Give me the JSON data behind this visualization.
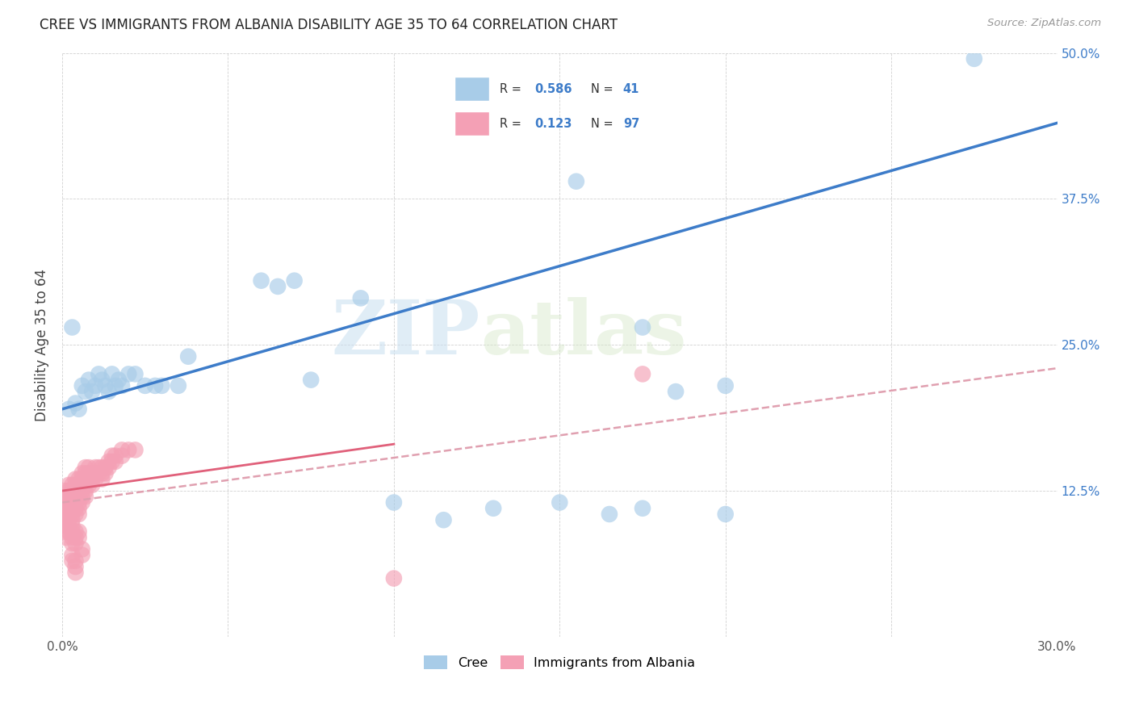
{
  "title": "CREE VS IMMIGRANTS FROM ALBANIA DISABILITY AGE 35 TO 64 CORRELATION CHART",
  "source": "Source: ZipAtlas.com",
  "xlabel": "",
  "ylabel": "Disability Age 35 to 64",
  "xlim": [
    0,
    0.3
  ],
  "ylim": [
    0,
    0.5
  ],
  "xticks": [
    0.0,
    0.05,
    0.1,
    0.15,
    0.2,
    0.25,
    0.3
  ],
  "yticks": [
    0.0,
    0.125,
    0.25,
    0.375,
    0.5
  ],
  "cree_color": "#a8cce8",
  "albania_color": "#f4a0b5",
  "cree_line_color": "#3d7cc9",
  "albania_line_color": "#e0607a",
  "albania_dash_color": "#e0a0b0",
  "watermark_zip": "ZIP",
  "watermark_atlas": "atlas",
  "background_color": "#ffffff",
  "cree_scatter": [
    [
      0.002,
      0.195
    ],
    [
      0.004,
      0.2
    ],
    [
      0.005,
      0.195
    ],
    [
      0.006,
      0.215
    ],
    [
      0.007,
      0.21
    ],
    [
      0.008,
      0.22
    ],
    [
      0.009,
      0.21
    ],
    [
      0.01,
      0.215
    ],
    [
      0.011,
      0.225
    ],
    [
      0.012,
      0.22
    ],
    [
      0.013,
      0.215
    ],
    [
      0.014,
      0.21
    ],
    [
      0.015,
      0.225
    ],
    [
      0.016,
      0.215
    ],
    [
      0.017,
      0.22
    ],
    [
      0.018,
      0.215
    ],
    [
      0.02,
      0.225
    ],
    [
      0.022,
      0.225
    ],
    [
      0.025,
      0.215
    ],
    [
      0.028,
      0.215
    ],
    [
      0.03,
      0.215
    ],
    [
      0.035,
      0.215
    ],
    [
      0.038,
      0.24
    ],
    [
      0.003,
      0.265
    ],
    [
      0.06,
      0.305
    ],
    [
      0.065,
      0.3
    ],
    [
      0.07,
      0.305
    ],
    [
      0.075,
      0.22
    ],
    [
      0.09,
      0.29
    ],
    [
      0.13,
      0.11
    ],
    [
      0.15,
      0.115
    ],
    [
      0.165,
      0.105
    ],
    [
      0.2,
      0.105
    ],
    [
      0.175,
      0.11
    ],
    [
      0.155,
      0.39
    ],
    [
      0.275,
      0.495
    ],
    [
      0.185,
      0.21
    ],
    [
      0.1,
      0.115
    ],
    [
      0.115,
      0.1
    ],
    [
      0.175,
      0.265
    ],
    [
      0.2,
      0.215
    ]
  ],
  "albania_scatter": [
    [
      0.001,
      0.125
    ],
    [
      0.001,
      0.12
    ],
    [
      0.001,
      0.115
    ],
    [
      0.001,
      0.1
    ],
    [
      0.002,
      0.13
    ],
    [
      0.002,
      0.125
    ],
    [
      0.002,
      0.12
    ],
    [
      0.002,
      0.115
    ],
    [
      0.002,
      0.11
    ],
    [
      0.002,
      0.105
    ],
    [
      0.002,
      0.1
    ],
    [
      0.003,
      0.13
    ],
    [
      0.003,
      0.125
    ],
    [
      0.003,
      0.12
    ],
    [
      0.003,
      0.115
    ],
    [
      0.003,
      0.11
    ],
    [
      0.003,
      0.105
    ],
    [
      0.003,
      0.1
    ],
    [
      0.004,
      0.135
    ],
    [
      0.004,
      0.13
    ],
    [
      0.004,
      0.125
    ],
    [
      0.004,
      0.12
    ],
    [
      0.004,
      0.115
    ],
    [
      0.004,
      0.11
    ],
    [
      0.004,
      0.105
    ],
    [
      0.005,
      0.135
    ],
    [
      0.005,
      0.13
    ],
    [
      0.005,
      0.125
    ],
    [
      0.005,
      0.12
    ],
    [
      0.005,
      0.115
    ],
    [
      0.005,
      0.11
    ],
    [
      0.005,
      0.105
    ],
    [
      0.006,
      0.14
    ],
    [
      0.006,
      0.135
    ],
    [
      0.006,
      0.13
    ],
    [
      0.006,
      0.125
    ],
    [
      0.006,
      0.12
    ],
    [
      0.006,
      0.115
    ],
    [
      0.007,
      0.145
    ],
    [
      0.007,
      0.14
    ],
    [
      0.007,
      0.135
    ],
    [
      0.007,
      0.13
    ],
    [
      0.007,
      0.125
    ],
    [
      0.007,
      0.12
    ],
    [
      0.008,
      0.145
    ],
    [
      0.008,
      0.14
    ],
    [
      0.008,
      0.135
    ],
    [
      0.008,
      0.13
    ],
    [
      0.009,
      0.14
    ],
    [
      0.009,
      0.135
    ],
    [
      0.009,
      0.13
    ],
    [
      0.01,
      0.145
    ],
    [
      0.01,
      0.14
    ],
    [
      0.01,
      0.135
    ],
    [
      0.011,
      0.145
    ],
    [
      0.011,
      0.14
    ],
    [
      0.012,
      0.145
    ],
    [
      0.012,
      0.14
    ],
    [
      0.012,
      0.135
    ],
    [
      0.013,
      0.145
    ],
    [
      0.013,
      0.14
    ],
    [
      0.014,
      0.15
    ],
    [
      0.014,
      0.145
    ],
    [
      0.015,
      0.155
    ],
    [
      0.015,
      0.15
    ],
    [
      0.016,
      0.155
    ],
    [
      0.016,
      0.15
    ],
    [
      0.018,
      0.16
    ],
    [
      0.018,
      0.155
    ],
    [
      0.02,
      0.16
    ],
    [
      0.022,
      0.16
    ],
    [
      0.0005,
      0.115
    ],
    [
      0.0005,
      0.11
    ],
    [
      0.0005,
      0.105
    ],
    [
      0.001,
      0.095
    ],
    [
      0.001,
      0.09
    ],
    [
      0.001,
      0.085
    ],
    [
      0.002,
      0.095
    ],
    [
      0.002,
      0.09
    ],
    [
      0.003,
      0.095
    ],
    [
      0.003,
      0.09
    ],
    [
      0.003,
      0.085
    ],
    [
      0.003,
      0.08
    ],
    [
      0.004,
      0.09
    ],
    [
      0.004,
      0.085
    ],
    [
      0.004,
      0.08
    ],
    [
      0.005,
      0.09
    ],
    [
      0.005,
      0.085
    ],
    [
      0.006,
      0.075
    ],
    [
      0.006,
      0.07
    ],
    [
      0.003,
      0.07
    ],
    [
      0.003,
      0.065
    ],
    [
      0.004,
      0.065
    ],
    [
      0.004,
      0.06
    ],
    [
      0.004,
      0.055
    ],
    [
      0.1,
      0.05
    ],
    [
      0.175,
      0.225
    ]
  ]
}
